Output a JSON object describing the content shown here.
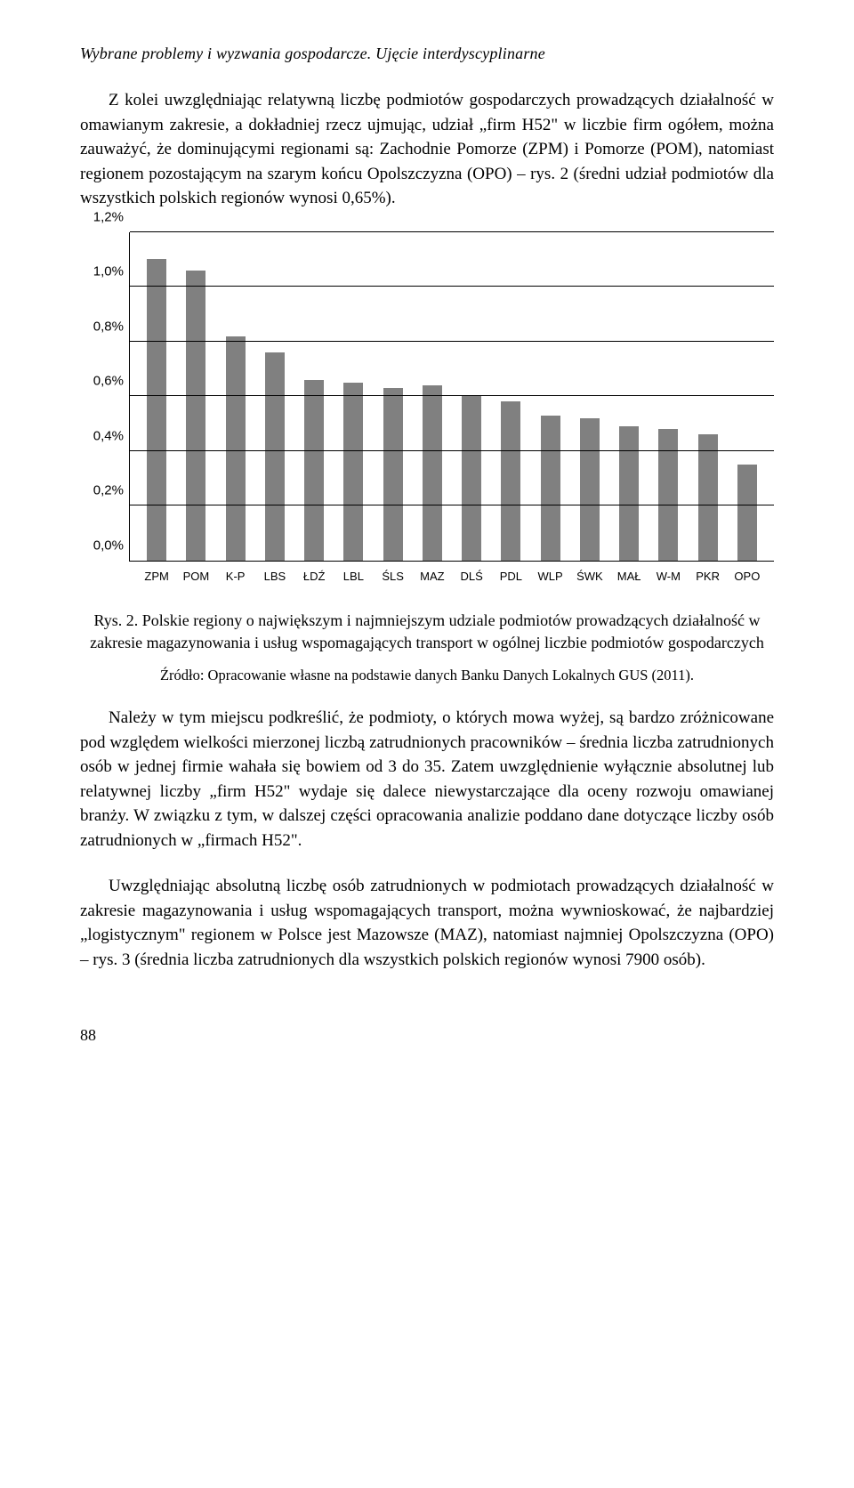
{
  "header": {
    "title": "Wybrane problemy i wyzwania gospodarcze. Ujęcie interdyscyplinarne"
  },
  "paragraph1": "Z kolei uwzględniając relatywną liczbę podmiotów gospodarczych prowadzących działalność w omawianym zakresie, a dokładniej rzecz ujmując, udział „firm H52\" w liczbie firm ogółem, można zauważyć, że dominującymi regionami są: Zachodnie Pomorze (ZPM) i Pomorze (POM), natomiast regionem pozostającym na szarym końcu Opolszczyzna (OPO) – rys. 2 (średni udział podmiotów dla wszystkich polskich regionów wynosi 0,65%).",
  "chart": {
    "type": "bar",
    "categories": [
      "ZPM",
      "POM",
      "K-P",
      "LBS",
      "ŁDŹ",
      "LBL",
      "ŚLS",
      "MAZ",
      "DLŚ",
      "PDL",
      "WLP",
      "ŚWK",
      "MAŁ",
      "W-M",
      "PKR",
      "OPO"
    ],
    "values": [
      1.1,
      1.06,
      0.82,
      0.76,
      0.66,
      0.65,
      0.63,
      0.64,
      0.6,
      0.58,
      0.53,
      0.52,
      0.49,
      0.48,
      0.46,
      0.35
    ],
    "bar_color": "#808080",
    "background_color": "#ffffff",
    "grid_color": "#000000",
    "ylim": [
      0,
      1.2
    ],
    "ytick_step": 0.2,
    "yticks": [
      "0,0%",
      "0,2%",
      "0,4%",
      "0,6%",
      "0,8%",
      "1,0%",
      "1,2%"
    ],
    "bar_width": 0.5
  },
  "figure": {
    "caption": "Rys. 2. Polskie regiony o największym i najmniejszym udziale podmiotów prowadzących działalność w zakresie magazynowania i usług wspomagających transport w ogólnej liczbie podmiotów gospodarczych",
    "source": "Źródło: Opracowanie własne na podstawie danych Banku Danych Lokalnych GUS (2011)."
  },
  "paragraph2": "Należy w tym miejscu podkreślić, że podmioty, o których mowa wyżej, są bardzo zróżnicowane pod względem wielkości mierzonej liczbą zatrudnionych pracowników – średnia liczba zatrudnionych osób w jednej firmie wahała się bowiem od 3 do 35. Zatem uwzględnienie wyłącznie absolutnej lub relatywnej liczby „firm H52\" wydaje się dalece niewystarczające dla oceny rozwoju omawianej branży. W związku z tym, w dalszej części opracowania analizie poddano dane dotyczące liczby osób zatrudnionych w „firmach H52\".",
  "paragraph3": "Uwzględniając absolutną liczbę osób zatrudnionych w podmiotach prowadzących działalność w zakresie magazynowania i usług wspomagających transport, można wywnioskować, że najbardziej „logistycznym\" regionem w Polsce jest Mazowsze (MAZ), natomiast najmniej Opolszczyzna (OPO) – rys. 3 (średnia liczba zatrudnionych dla wszystkich polskich regionów wynosi 7900 osób).",
  "page_number": "88"
}
